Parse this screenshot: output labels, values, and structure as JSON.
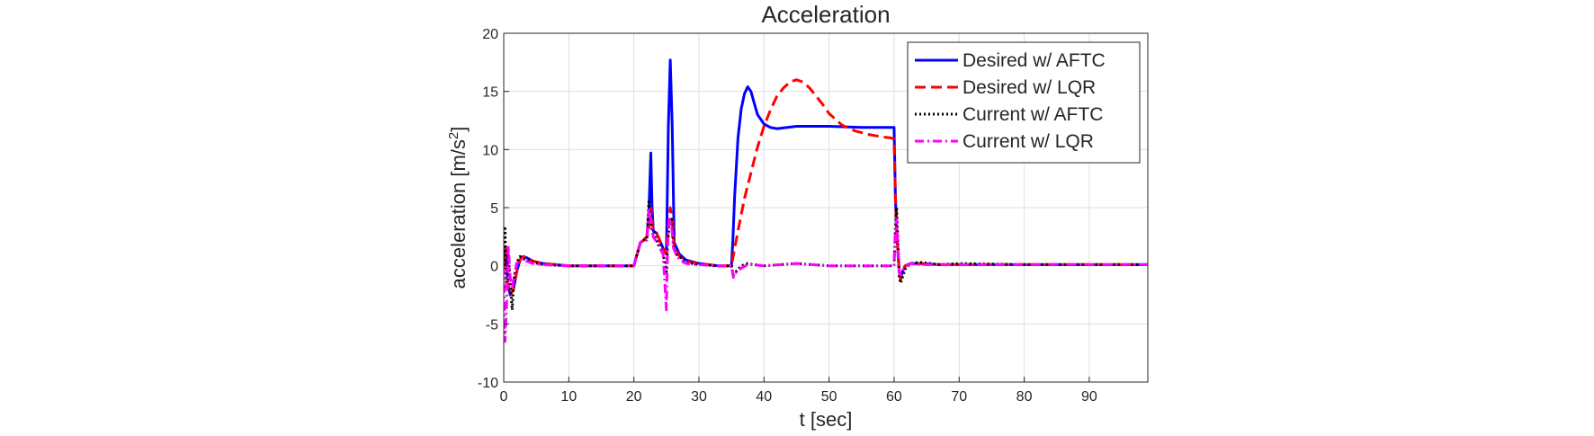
{
  "chart_data": {
    "type": "line",
    "title": "Acceleration",
    "xlabel": "t [sec]",
    "ylabel": "acceleration [m/s",
    "ylabel_sup": "2",
    "ylabel_close": "]",
    "xlim": [
      0,
      99
    ],
    "ylim": [
      -10,
      20
    ],
    "xticks": [
      0,
      10,
      20,
      30,
      40,
      50,
      60,
      70,
      80,
      90
    ],
    "yticks": [
      -10,
      -5,
      0,
      5,
      10,
      15,
      20
    ],
    "grid": true,
    "legend_position": "top-right",
    "series": [
      {
        "name": "Desired w/ AFTC",
        "color": "#0000ff",
        "style": "solid",
        "x": [
          0,
          0.3,
          0.6,
          1.0,
          1.5,
          2.0,
          2.5,
          3.0,
          3.5,
          4.5,
          6,
          10,
          15,
          20,
          20.5,
          21,
          21.5,
          22,
          22.3,
          22.6,
          22.8,
          23.0,
          23.5,
          24.5,
          25.0,
          25.3,
          25.6,
          25.9,
          26.2,
          26.6,
          27,
          28,
          30,
          33,
          35,
          35.2,
          35.5,
          36,
          36.5,
          37,
          37.5,
          38,
          38.5,
          39,
          40,
          41,
          42,
          45,
          48,
          50,
          55,
          59,
          60.0,
          60.2,
          60.4,
          60.6,
          60.8,
          61.0,
          61.3,
          61.7,
          62.5,
          64,
          67,
          70,
          80,
          90,
          99
        ],
        "y": [
          0,
          1.5,
          -1.5,
          -2.5,
          -2.0,
          -0.5,
          0.5,
          0.8,
          0.7,
          0.4,
          0.2,
          0,
          0,
          0,
          1.0,
          2.0,
          2.2,
          2.5,
          4.5,
          9.7,
          5.0,
          3.0,
          2.8,
          1.5,
          1.0,
          12.0,
          17.7,
          12.0,
          2.0,
          1.5,
          1.0,
          0.5,
          0.2,
          0,
          0,
          2.0,
          6.0,
          11.0,
          13.5,
          14.8,
          15.4,
          15.0,
          14.0,
          13.0,
          12.2,
          11.9,
          11.8,
          12.0,
          12.0,
          12.0,
          11.9,
          11.9,
          11.9,
          6.0,
          3.0,
          1.0,
          -0.5,
          -1.2,
          -0.5,
          0,
          0.2,
          0.2,
          0.1,
          0.1,
          0.1,
          0.1,
          0.1
        ]
      },
      {
        "name": "Desired w/ LQR",
        "color": "#ff0000",
        "style": "dashed",
        "x": [
          0,
          0.3,
          0.6,
          1.0,
          1.5,
          2.0,
          2.5,
          3.0,
          3.5,
          4.5,
          6,
          10,
          15,
          20,
          20.5,
          21,
          21.5,
          22,
          22.3,
          22.6,
          22.8,
          23.0,
          23.5,
          24.5,
          25.0,
          25.3,
          25.6,
          25.9,
          26.2,
          26.6,
          27,
          28,
          30,
          33,
          35,
          35.5,
          36,
          37,
          38,
          39,
          40,
          41,
          42,
          43,
          44,
          45,
          46,
          47,
          48,
          49,
          50,
          52,
          54,
          56,
          58,
          59.5,
          60.0,
          60.2,
          60.4,
          60.6,
          60.8,
          61.0,
          61.3,
          61.7,
          62.5,
          64,
          67,
          70,
          80,
          90,
          99
        ],
        "y": [
          0,
          1.5,
          -1.5,
          -2.5,
          -2.0,
          -0.5,
          0.5,
          0.8,
          0.7,
          0.4,
          0.2,
          0,
          0,
          0,
          1.0,
          2.0,
          2.2,
          2.5,
          3.0,
          5.0,
          4.0,
          3.0,
          2.8,
          1.5,
          1.0,
          3.5,
          5.0,
          4.0,
          1.5,
          1.2,
          0.8,
          0.4,
          0.2,
          0,
          0,
          1.5,
          3.0,
          5.8,
          8.0,
          10.2,
          12.0,
          13.4,
          14.6,
          15.3,
          15.8,
          16.0,
          15.8,
          15.3,
          14.6,
          13.9,
          13.1,
          12.1,
          11.6,
          11.3,
          11.1,
          11.0,
          10.9,
          6.0,
          3.0,
          1.0,
          -0.5,
          -1.2,
          -0.5,
          0,
          0.2,
          0.2,
          0.1,
          0.1,
          0.1,
          0.1,
          0.1
        ]
      },
      {
        "name": "Current w/ AFTC",
        "color": "#000000",
        "style": "dotted",
        "x": [
          0,
          0.2,
          0.4,
          0.7,
          1.0,
          1.3,
          1.6,
          2.0,
          2.5,
          3.0,
          3.5,
          4.5,
          6,
          10,
          15,
          20,
          20.5,
          21,
          21.5,
          22,
          22.3,
          22.6,
          22.8,
          23.0,
          23.5,
          24.5,
          25.0,
          25.2,
          25.5,
          25.8,
          26.1,
          26.5,
          27,
          28,
          30,
          33,
          35,
          35.3,
          35.7,
          36.5,
          37.5,
          38.5,
          40,
          45,
          50,
          55,
          59.5,
          60.0,
          60.2,
          60.4,
          60.6,
          60.8,
          61.0,
          61.3,
          61.7,
          62.5,
          64,
          67,
          70,
          80,
          90,
          99
        ],
        "y": [
          0,
          3.2,
          -2.0,
          1.0,
          -1.5,
          -3.8,
          -1.0,
          0.3,
          0.8,
          0.6,
          0.5,
          0.3,
          0.1,
          0,
          0,
          0,
          1.0,
          2.0,
          2.2,
          2.3,
          5.5,
          4.0,
          3.0,
          2.8,
          2.2,
          1.0,
          -0.5,
          2.0,
          3.8,
          4.0,
          1.5,
          1.0,
          0.8,
          0.3,
          0.1,
          0,
          0,
          -0.8,
          -0.5,
          0.0,
          0.2,
          0.1,
          0,
          0.2,
          0,
          0,
          0,
          0,
          3.5,
          5.0,
          2.0,
          -1.0,
          -1.5,
          -1.0,
          -0.3,
          0.2,
          0.3,
          0.1,
          0.2,
          0.1,
          0.1,
          0.1
        ]
      },
      {
        "name": "Current w/ LQR",
        "color": "#ff00ff",
        "style": "dashdot",
        "x": [
          0,
          0.2,
          0.4,
          0.7,
          1.0,
          1.3,
          1.6,
          2.0,
          2.5,
          3.0,
          3.5,
          4.5,
          6,
          10,
          15,
          20,
          20.5,
          21,
          21.5,
          22,
          22.3,
          22.6,
          22.8,
          23.0,
          23.5,
          24.5,
          25.0,
          25.2,
          25.5,
          25.8,
          26.1,
          26.5,
          27,
          28,
          30,
          33,
          35,
          35.3,
          35.7,
          36.5,
          37.5,
          38.5,
          40,
          45,
          50,
          55,
          59.5,
          60.0,
          60.2,
          60.4,
          60.6,
          60.8,
          61.0,
          61.3,
          61.7,
          62.5,
          64,
          67,
          70,
          80,
          90,
          99
        ],
        "y": [
          0,
          -6.5,
          -4.0,
          1.7,
          -1.0,
          -2.0,
          -0.8,
          0.2,
          0.6,
          0.5,
          0.4,
          0.2,
          0.1,
          0,
          0,
          0,
          1.0,
          2.0,
          2.1,
          2.2,
          5.0,
          4.0,
          3.0,
          2.5,
          2.0,
          1.0,
          -3.8,
          2.0,
          4.0,
          3.5,
          1.5,
          1.0,
          0.5,
          0.2,
          0.1,
          0,
          0,
          -1.0,
          -0.6,
          -0.2,
          0.1,
          0.1,
          0,
          0.2,
          0,
          0,
          0,
          0,
          3.0,
          4.0,
          1.5,
          -0.5,
          -0.8,
          -0.5,
          -0.1,
          0.2,
          0.1,
          0.1,
          0.1,
          0.1,
          0.1,
          0.1
        ]
      }
    ]
  }
}
